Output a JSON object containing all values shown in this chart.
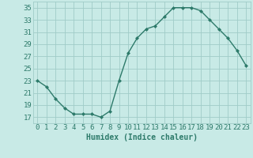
{
  "x": [
    0,
    1,
    2,
    3,
    4,
    5,
    6,
    7,
    8,
    9,
    10,
    11,
    12,
    13,
    14,
    15,
    16,
    17,
    18,
    19,
    20,
    21,
    22,
    23
  ],
  "y": [
    23.0,
    22.0,
    20.0,
    18.5,
    17.5,
    17.5,
    17.5,
    17.0,
    18.0,
    23.0,
    27.5,
    30.0,
    31.5,
    32.0,
    33.5,
    35.0,
    35.0,
    35.0,
    34.5,
    33.0,
    31.5,
    30.0,
    28.0,
    25.5
  ],
  "line_color": "#2d7a6a",
  "marker": "D",
  "marker_size": 2.0,
  "bg_color": "#c8eae6",
  "grid_color": "#a0ccc8",
  "xlabel": "Humidex (Indice chaleur)",
  "ylim": [
    16,
    36
  ],
  "xlim": [
    -0.5,
    23.5
  ],
  "yticks": [
    17,
    19,
    21,
    23,
    25,
    27,
    29,
    31,
    33,
    35
  ],
  "xtick_labels": [
    "0",
    "1",
    "2",
    "3",
    "4",
    "5",
    "6",
    "7",
    "8",
    "9",
    "10",
    "11",
    "12",
    "13",
    "14",
    "15",
    "16",
    "17",
    "18",
    "19",
    "20",
    "21",
    "22",
    "23"
  ],
  "text_color": "#2d7a6a",
  "xlabel_fontsize": 7,
  "tick_fontsize": 6.5,
  "linewidth": 1.0
}
